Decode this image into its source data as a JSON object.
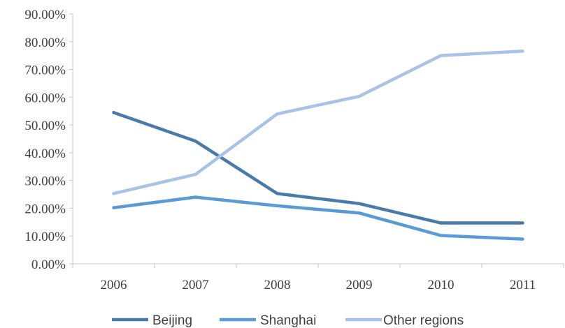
{
  "chart_data": {
    "type": "line",
    "title": "",
    "xlabel": "",
    "ylabel": "",
    "categories": [
      "2006",
      "2007",
      "2008",
      "2009",
      "2010",
      "2011"
    ],
    "ylim": [
      0,
      90
    ],
    "y_ticks": [
      0,
      10,
      20,
      30,
      40,
      50,
      60,
      70,
      80,
      90
    ],
    "y_tick_labels": [
      "0.00%",
      "10.00%",
      "20.00%",
      "30.00%",
      "40.00%",
      "50.00%",
      "60.00%",
      "70.00%",
      "80.00%",
      "90.00%"
    ],
    "grid": false,
    "legend_position": "bottom",
    "series": [
      {
        "name": "Beijing",
        "color": "#4a7aaa",
        "values": [
          54.5,
          44.2,
          25.3,
          21.7,
          14.7,
          14.7
        ]
      },
      {
        "name": "Shanghai",
        "color": "#5b9bd5",
        "values": [
          20.2,
          24.0,
          20.9,
          18.3,
          10.2,
          8.9
        ]
      },
      {
        "name": "Other regions",
        "color": "#a9c3e6",
        "values": [
          25.3,
          32.2,
          54.0,
          60.3,
          75.0,
          76.6
        ]
      }
    ]
  }
}
